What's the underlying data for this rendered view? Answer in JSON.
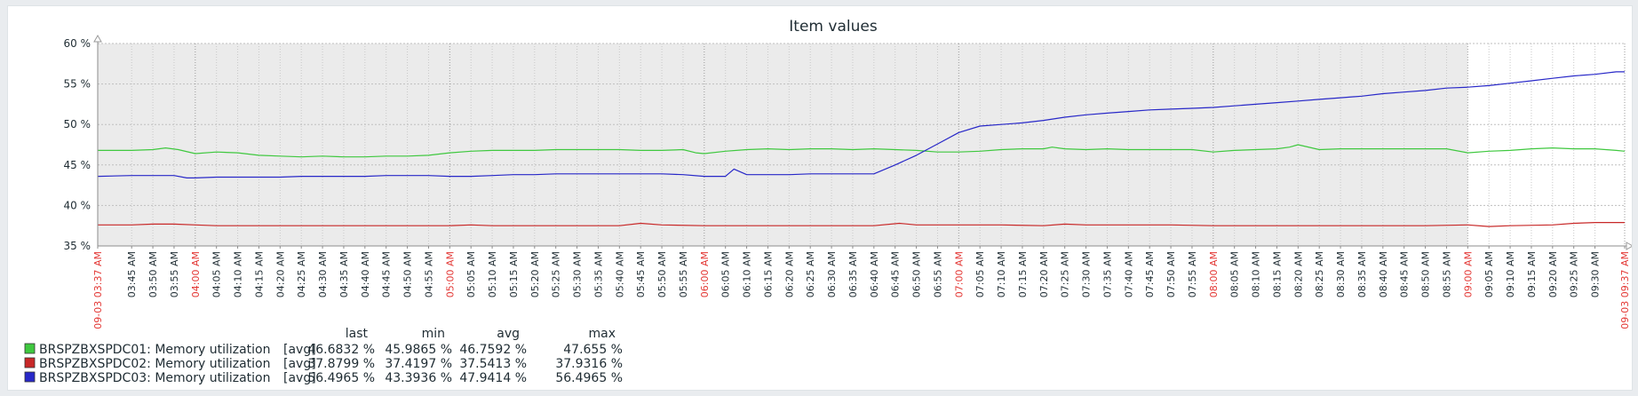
{
  "chart_data": {
    "type": "line",
    "title": "Item values",
    "ylim": [
      35,
      60
    ],
    "y_ticks": [
      35,
      40,
      45,
      50,
      55,
      60
    ],
    "y_unit": "%",
    "grid": true,
    "x_start_label": "09-03 03:37 AM",
    "x_end_label": "09-03 09:37 AM",
    "x_start_minutes": 217,
    "x_end_minutes": 577,
    "shaded_until_minutes": 540,
    "x_labels": [
      {
        "t": 217,
        "label": "09-03 03:37 AM",
        "red": true
      },
      {
        "t": 225,
        "label": "03:45 AM"
      },
      {
        "t": 230,
        "label": "03:50 AM"
      },
      {
        "t": 235,
        "label": "03:55 AM"
      },
      {
        "t": 240,
        "label": "04:00 AM",
        "red": true
      },
      {
        "t": 245,
        "label": "04:05 AM"
      },
      {
        "t": 250,
        "label": "04:10 AM"
      },
      {
        "t": 255,
        "label": "04:15 AM"
      },
      {
        "t": 260,
        "label": "04:20 AM"
      },
      {
        "t": 265,
        "label": "04:25 AM"
      },
      {
        "t": 270,
        "label": "04:30 AM"
      },
      {
        "t": 275,
        "label": "04:35 AM"
      },
      {
        "t": 280,
        "label": "04:40 AM"
      },
      {
        "t": 285,
        "label": "04:45 AM"
      },
      {
        "t": 290,
        "label": "04:50 AM"
      },
      {
        "t": 295,
        "label": "04:55 AM"
      },
      {
        "t": 300,
        "label": "05:00 AM",
        "red": true
      },
      {
        "t": 305,
        "label": "05:05 AM"
      },
      {
        "t": 310,
        "label": "05:10 AM"
      },
      {
        "t": 315,
        "label": "05:15 AM"
      },
      {
        "t": 320,
        "label": "05:20 AM"
      },
      {
        "t": 325,
        "label": "05:25 AM"
      },
      {
        "t": 330,
        "label": "05:30 AM"
      },
      {
        "t": 335,
        "label": "05:35 AM"
      },
      {
        "t": 340,
        "label": "05:40 AM"
      },
      {
        "t": 345,
        "label": "05:45 AM"
      },
      {
        "t": 350,
        "label": "05:50 AM"
      },
      {
        "t": 355,
        "label": "05:55 AM"
      },
      {
        "t": 360,
        "label": "06:00 AM",
        "red": true
      },
      {
        "t": 365,
        "label": "06:05 AM"
      },
      {
        "t": 370,
        "label": "06:10 AM"
      },
      {
        "t": 375,
        "label": "06:15 AM"
      },
      {
        "t": 380,
        "label": "06:20 AM"
      },
      {
        "t": 385,
        "label": "06:25 AM"
      },
      {
        "t": 390,
        "label": "06:30 AM"
      },
      {
        "t": 395,
        "label": "06:35 AM"
      },
      {
        "t": 400,
        "label": "06:40 AM"
      },
      {
        "t": 405,
        "label": "06:45 AM"
      },
      {
        "t": 410,
        "label": "06:50 AM"
      },
      {
        "t": 415,
        "label": "06:55 AM"
      },
      {
        "t": 420,
        "label": "07:00 AM",
        "red": true
      },
      {
        "t": 425,
        "label": "07:05 AM"
      },
      {
        "t": 430,
        "label": "07:10 AM"
      },
      {
        "t": 435,
        "label": "07:15 AM"
      },
      {
        "t": 440,
        "label": "07:20 AM"
      },
      {
        "t": 445,
        "label": "07:25 AM"
      },
      {
        "t": 450,
        "label": "07:30 AM"
      },
      {
        "t": 455,
        "label": "07:35 AM"
      },
      {
        "t": 460,
        "label": "07:40 AM"
      },
      {
        "t": 465,
        "label": "07:45 AM"
      },
      {
        "t": 470,
        "label": "07:50 AM"
      },
      {
        "t": 475,
        "label": "07:55 AM"
      },
      {
        "t": 480,
        "label": "08:00 AM",
        "red": true
      },
      {
        "t": 485,
        "label": "08:05 AM"
      },
      {
        "t": 490,
        "label": "08:10 AM"
      },
      {
        "t": 495,
        "label": "08:15 AM"
      },
      {
        "t": 500,
        "label": "08:20 AM"
      },
      {
        "t": 505,
        "label": "08:25 AM"
      },
      {
        "t": 510,
        "label": "08:30 AM"
      },
      {
        "t": 515,
        "label": "08:35 AM"
      },
      {
        "t": 520,
        "label": "08:40 AM"
      },
      {
        "t": 525,
        "label": "08:45 AM"
      },
      {
        "t": 530,
        "label": "08:50 AM"
      },
      {
        "t": 535,
        "label": "08:55 AM"
      },
      {
        "t": 540,
        "label": "09:00 AM",
        "red": true
      },
      {
        "t": 545,
        "label": "09:05 AM"
      },
      {
        "t": 550,
        "label": "09:10 AM"
      },
      {
        "t": 555,
        "label": "09:15 AM"
      },
      {
        "t": 560,
        "label": "09:20 AM"
      },
      {
        "t": 565,
        "label": "09:25 AM"
      },
      {
        "t": 570,
        "label": "09:30 AM"
      },
      {
        "t": 577,
        "label": "09-03 09:37 AM",
        "red": true
      }
    ],
    "legend_headers": [
      "last",
      "min",
      "avg",
      "max"
    ],
    "series": [
      {
        "name": "BRSPZBXSPDC01: Memory utilization",
        "func": "[avg]",
        "color": "#3fc83f",
        "last": "46.6832 %",
        "min": "45.9865 %",
        "avg": "46.7592 %",
        "max": "47.655 %",
        "points": [
          [
            217,
            46.8
          ],
          [
            225,
            46.8
          ],
          [
            230,
            46.9
          ],
          [
            233,
            47.1
          ],
          [
            236,
            46.9
          ],
          [
            240,
            46.4
          ],
          [
            245,
            46.6
          ],
          [
            250,
            46.5
          ],
          [
            255,
            46.2
          ],
          [
            260,
            46.1
          ],
          [
            265,
            46.0
          ],
          [
            270,
            46.1
          ],
          [
            275,
            46.0
          ],
          [
            280,
            46.0
          ],
          [
            285,
            46.1
          ],
          [
            290,
            46.1
          ],
          [
            295,
            46.2
          ],
          [
            300,
            46.5
          ],
          [
            305,
            46.7
          ],
          [
            310,
            46.8
          ],
          [
            315,
            46.8
          ],
          [
            320,
            46.8
          ],
          [
            325,
            46.9
          ],
          [
            330,
            46.9
          ],
          [
            335,
            46.9
          ],
          [
            340,
            46.9
          ],
          [
            345,
            46.8
          ],
          [
            350,
            46.8
          ],
          [
            355,
            46.9
          ],
          [
            358,
            46.5
          ],
          [
            360,
            46.4
          ],
          [
            365,
            46.7
          ],
          [
            370,
            46.9
          ],
          [
            375,
            47.0
          ],
          [
            380,
            46.9
          ],
          [
            385,
            47.0
          ],
          [
            390,
            47.0
          ],
          [
            395,
            46.9
          ],
          [
            400,
            47.0
          ],
          [
            405,
            46.9
          ],
          [
            410,
            46.8
          ],
          [
            415,
            46.6
          ],
          [
            420,
            46.6
          ],
          [
            425,
            46.7
          ],
          [
            430,
            46.9
          ],
          [
            435,
            47.0
          ],
          [
            440,
            47.0
          ],
          [
            442,
            47.2
          ],
          [
            445,
            47.0
          ],
          [
            450,
            46.9
          ],
          [
            455,
            47.0
          ],
          [
            460,
            46.9
          ],
          [
            465,
            46.9
          ],
          [
            470,
            46.9
          ],
          [
            475,
            46.9
          ],
          [
            480,
            46.6
          ],
          [
            485,
            46.8
          ],
          [
            490,
            46.9
          ],
          [
            495,
            47.0
          ],
          [
            498,
            47.2
          ],
          [
            500,
            47.5
          ],
          [
            505,
            46.9
          ],
          [
            510,
            47.0
          ],
          [
            515,
            47.0
          ],
          [
            520,
            47.0
          ],
          [
            525,
            47.0
          ],
          [
            530,
            47.0
          ],
          [
            535,
            47.0
          ],
          [
            540,
            46.5
          ],
          [
            545,
            46.7
          ],
          [
            550,
            46.8
          ],
          [
            555,
            47.0
          ],
          [
            560,
            47.1
          ],
          [
            565,
            47.0
          ],
          [
            570,
            47.0
          ],
          [
            575,
            46.8
          ],
          [
            577,
            46.7
          ]
        ]
      },
      {
        "name": "BRSPZBXSPDC02: Memory utilization",
        "func": "[avg]",
        "color": "#c82828",
        "last": "37.8799 %",
        "min": "37.4197 %",
        "avg": "37.5413 %",
        "max": "37.9316 %",
        "points": [
          [
            217,
            37.6
          ],
          [
            225,
            37.6
          ],
          [
            230,
            37.7
          ],
          [
            235,
            37.7
          ],
          [
            240,
            37.6
          ],
          [
            245,
            37.5
          ],
          [
            250,
            37.5
          ],
          [
            260,
            37.5
          ],
          [
            270,
            37.5
          ],
          [
            280,
            37.5
          ],
          [
            290,
            37.5
          ],
          [
            300,
            37.5
          ],
          [
            305,
            37.6
          ],
          [
            310,
            37.5
          ],
          [
            320,
            37.5
          ],
          [
            330,
            37.5
          ],
          [
            340,
            37.5
          ],
          [
            345,
            37.8
          ],
          [
            350,
            37.6
          ],
          [
            360,
            37.5
          ],
          [
            370,
            37.5
          ],
          [
            380,
            37.5
          ],
          [
            390,
            37.5
          ],
          [
            400,
            37.5
          ],
          [
            406,
            37.8
          ],
          [
            410,
            37.6
          ],
          [
            420,
            37.6
          ],
          [
            430,
            37.6
          ],
          [
            440,
            37.5
          ],
          [
            445,
            37.7
          ],
          [
            450,
            37.6
          ],
          [
            460,
            37.6
          ],
          [
            470,
            37.6
          ],
          [
            480,
            37.5
          ],
          [
            490,
            37.5
          ],
          [
            500,
            37.5
          ],
          [
            510,
            37.5
          ],
          [
            520,
            37.5
          ],
          [
            530,
            37.5
          ],
          [
            540,
            37.6
          ],
          [
            545,
            37.4
          ],
          [
            550,
            37.5
          ],
          [
            560,
            37.6
          ],
          [
            565,
            37.8
          ],
          [
            570,
            37.9
          ],
          [
            577,
            37.9
          ]
        ]
      },
      {
        "name": "BRSPZBXSPDC03: Memory utilization",
        "func": "[avg]",
        "color": "#2828c8",
        "last": "56.4965 %",
        "min": "43.3936 %",
        "avg": "47.9414 %",
        "max": "56.4965 %",
        "points": [
          [
            217,
            43.6
          ],
          [
            225,
            43.7
          ],
          [
            230,
            43.7
          ],
          [
            235,
            43.7
          ],
          [
            238,
            43.4
          ],
          [
            240,
            43.4
          ],
          [
            245,
            43.5
          ],
          [
            250,
            43.5
          ],
          [
            255,
            43.5
          ],
          [
            260,
            43.5
          ],
          [
            265,
            43.6
          ],
          [
            270,
            43.6
          ],
          [
            275,
            43.6
          ],
          [
            280,
            43.6
          ],
          [
            285,
            43.7
          ],
          [
            290,
            43.7
          ],
          [
            295,
            43.7
          ],
          [
            300,
            43.6
          ],
          [
            305,
            43.6
          ],
          [
            310,
            43.7
          ],
          [
            315,
            43.8
          ],
          [
            320,
            43.8
          ],
          [
            325,
            43.9
          ],
          [
            330,
            43.9
          ],
          [
            335,
            43.9
          ],
          [
            340,
            43.9
          ],
          [
            345,
            43.9
          ],
          [
            350,
            43.9
          ],
          [
            355,
            43.8
          ],
          [
            360,
            43.6
          ],
          [
            365,
            43.6
          ],
          [
            367,
            44.5
          ],
          [
            370,
            43.8
          ],
          [
            375,
            43.8
          ],
          [
            380,
            43.8
          ],
          [
            385,
            43.9
          ],
          [
            390,
            43.9
          ],
          [
            395,
            43.9
          ],
          [
            400,
            43.9
          ],
          [
            405,
            45.0
          ],
          [
            410,
            46.2
          ],
          [
            415,
            47.6
          ],
          [
            420,
            49.0
          ],
          [
            425,
            49.8
          ],
          [
            430,
            50.0
          ],
          [
            435,
            50.2
          ],
          [
            440,
            50.5
          ],
          [
            445,
            50.9
          ],
          [
            450,
            51.2
          ],
          [
            455,
            51.4
          ],
          [
            460,
            51.6
          ],
          [
            465,
            51.8
          ],
          [
            470,
            51.9
          ],
          [
            475,
            52.0
          ],
          [
            480,
            52.1
          ],
          [
            485,
            52.3
          ],
          [
            490,
            52.5
          ],
          [
            495,
            52.7
          ],
          [
            500,
            52.9
          ],
          [
            505,
            53.1
          ],
          [
            510,
            53.3
          ],
          [
            515,
            53.5
          ],
          [
            520,
            53.8
          ],
          [
            525,
            54.0
          ],
          [
            530,
            54.2
          ],
          [
            535,
            54.5
          ],
          [
            540,
            54.6
          ],
          [
            545,
            54.8
          ],
          [
            550,
            55.1
          ],
          [
            555,
            55.4
          ],
          [
            560,
            55.7
          ],
          [
            565,
            56.0
          ],
          [
            570,
            56.2
          ],
          [
            575,
            56.5
          ],
          [
            577,
            56.5
          ]
        ]
      }
    ]
  }
}
